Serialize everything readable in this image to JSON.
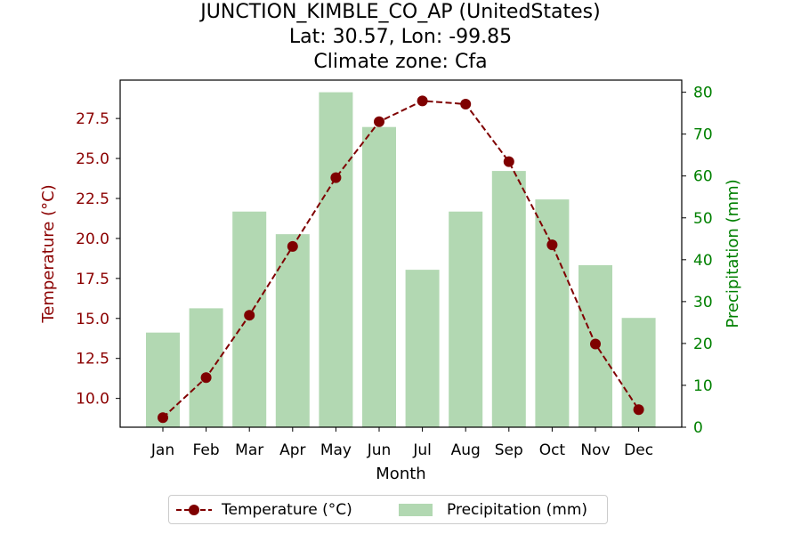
{
  "title": {
    "line1": "JUNCTION_KIMBLE_CO_AP (UnitedStates)",
    "line2": "Lat: 30.57, Lon: -99.85",
    "line3": "Climate zone: Cfa"
  },
  "colors": {
    "temperature": "#7f0000",
    "temperature_label": "#8b0000",
    "precipitation_bar": "#b2d8b2",
    "precipitation_label": "#008000"
  },
  "legend": {
    "temperature": "Temperature (°C)",
    "precipitation": "Precipitation (mm)"
  },
  "chart_data": {
    "type": "bar+line",
    "title": "JUNCTION_KIMBLE_CO_AP (UnitedStates)\nLat: 30.57, Lon: -99.85\nClimate zone: Cfa",
    "xlabel": "Month",
    "ylabel_left": "Temperature (°C)",
    "ylabel_right": "Precipitation (mm)",
    "categories": [
      "Jan",
      "Feb",
      "Mar",
      "Apr",
      "May",
      "Jun",
      "Jul",
      "Aug",
      "Sep",
      "Oct",
      "Nov",
      "Dec"
    ],
    "series": [
      {
        "name": "Temperature (°C)",
        "type": "line",
        "axis": "left",
        "values": [
          8.8,
          11.3,
          15.2,
          19.5,
          23.8,
          27.3,
          28.6,
          28.4,
          24.8,
          19.6,
          13.4,
          9.3
        ]
      },
      {
        "name": "Precipitation (mm)",
        "type": "bar",
        "axis": "right",
        "values": [
          22.6,
          28.4,
          51.5,
          46.1,
          80.0,
          71.7,
          37.6,
          51.5,
          61.2,
          54.4,
          38.7,
          26.1
        ]
      }
    ],
    "ylim_left": [
      8.2,
      29.9
    ],
    "ylim_right": [
      0,
      82.9
    ],
    "yticks_left": [
      "10.0",
      "12.5",
      "15.0",
      "17.5",
      "20.0",
      "22.5",
      "25.0",
      "27.5"
    ],
    "yticks_right": [
      "0",
      "10",
      "20",
      "30",
      "40",
      "50",
      "60",
      "70",
      "80"
    ],
    "grid": false,
    "legend_position": "bottom-center"
  }
}
